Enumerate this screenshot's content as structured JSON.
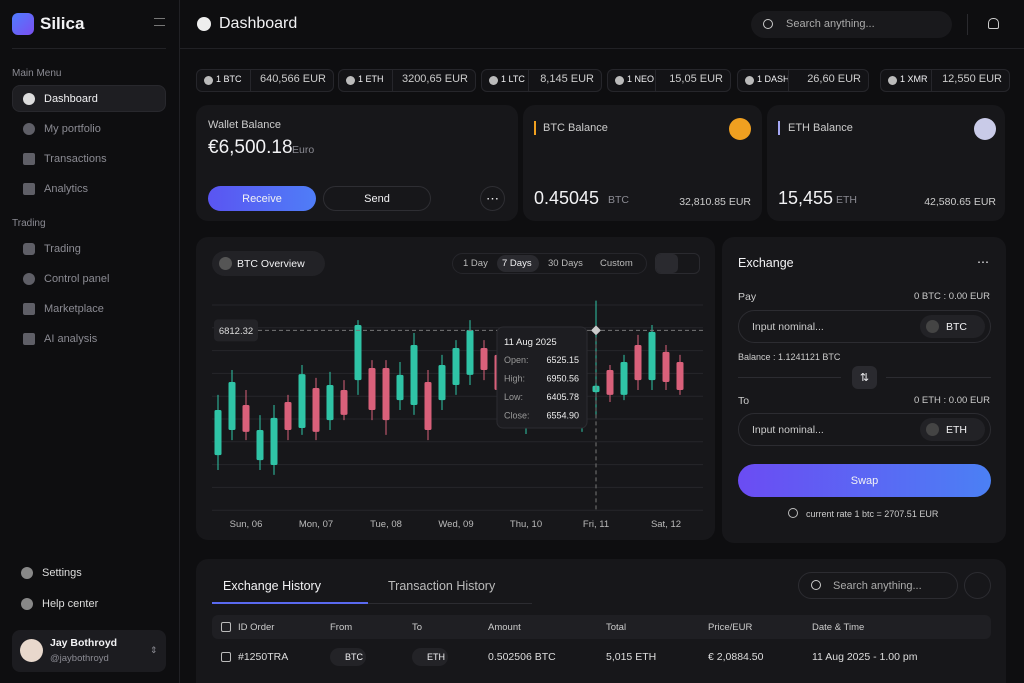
{
  "sidebar": {
    "brand": "Silica",
    "sections": [
      {
        "title": "Main Menu",
        "items": [
          "Dashboard",
          "My portfolio",
          "Transactions",
          "Analytics"
        ]
      },
      {
        "title": "Trading",
        "items": [
          "Trading",
          "Control panel",
          "Marketplace",
          "AI analysis"
        ]
      }
    ],
    "footer_items": [
      "Settings",
      "Help center"
    ],
    "user": {
      "name": "Jay Bothroyd",
      "handle": "@jaybothroyd"
    }
  },
  "header": {
    "title": "Dashboard",
    "search_placeholder": "Search anything..."
  },
  "ticker": [
    {
      "asset": "1 BTC",
      "price": "640,566 EUR"
    },
    {
      "asset": "1 ETH",
      "price": "3200,65 EUR"
    },
    {
      "asset": "1 LTC",
      "price": "8,145 EUR"
    },
    {
      "asset": "1 NEO",
      "price": "15,05 EUR"
    },
    {
      "asset": "1 DASH",
      "price": "26,60 EUR"
    },
    {
      "asset": "1 XMR",
      "price": "12,550 EUR"
    }
  ],
  "wallet": {
    "label": "Wallet Balance",
    "amount": "€6,500.18",
    "currency": "Euro",
    "buttons": [
      "Receive",
      "Send"
    ]
  },
  "balances": [
    {
      "label": "BTC Balance",
      "amount": "0.45045",
      "unit": "BTC",
      "fiat": "32,810.85 EUR"
    },
    {
      "label": "ETH Balance",
      "amount": "15,455",
      "unit": "ETH",
      "fiat": "42,580.65 EUR"
    }
  ],
  "overview": {
    "selector": "BTC Overview",
    "ranges": [
      "1 Day",
      "7 Days",
      "30 Days",
      "Custom"
    ]
  },
  "chart_data": {
    "type": "candlestick",
    "ylim": [
      6000,
      7000
    ],
    "grid": true,
    "up_color": "#2fc4a6",
    "down_color": "#d9607a",
    "x_axis_labels": [
      "Sun, 06",
      "Mon, 07",
      "Tue, 08",
      "Wed, 09",
      "Thu, 10",
      "Fri, 11",
      "Sat, 12"
    ],
    "open": [
      6232,
      6349,
      6465,
      6209,
      6186,
      6479,
      6358,
      6544,
      6395,
      6535,
      6581,
      6637,
      6637,
      6488,
      6465,
      6572,
      6488,
      6558,
      6605,
      6730,
      6698,
      6540,
      6420,
      6560,
      6470,
      6580,
      6430,
      6525.15,
      6628,
      6512,
      6744,
      6581,
      6712,
      6665
    ],
    "high": [
      6512,
      6628,
      6535,
      6418,
      6465,
      6512,
      6651,
      6591,
      6619,
      6581,
      6860,
      6674,
      6674,
      6665,
      6800,
      6628,
      6698,
      6767,
      6860,
      6767,
      6744,
      6650,
      6600,
      6600,
      6620,
      6620,
      6560,
      6950.56,
      6651,
      6698,
      6791,
      6837,
      6744,
      6698
    ],
    "low": [
      6163,
      6302,
      6302,
      6163,
      6140,
      6302,
      6326,
      6302,
      6349,
      6395,
      6512,
      6395,
      6326,
      6442,
      6419,
      6302,
      6442,
      6512,
      6558,
      6581,
      6488,
      6500,
      6330,
      6440,
      6430,
      6460,
      6340,
      6405.78,
      6479,
      6488,
      6535,
      6535,
      6535,
      6512
    ],
    "close": [
      6442,
      6572,
      6340,
      6349,
      6405,
      6349,
      6609,
      6340,
      6558,
      6419,
      6837,
      6442,
      6395,
      6605,
      6744,
      6349,
      6651,
      6730,
      6814,
      6628,
      6535,
      6600,
      6560,
      6480,
      6580,
      6500,
      6520,
      6554.9,
      6512,
      6665,
      6581,
      6805,
      6572,
      6535
    ],
    "crosshair": 6812.32,
    "tooltip": {
      "date": "11 Aug 2025",
      "rows": [
        {
          "label": "Open:",
          "value": "6525.15"
        },
        {
          "label": "High:",
          "value": "6950.56"
        },
        {
          "label": "Low:",
          "value": "6405.78"
        },
        {
          "label": "Close:",
          "value": "6554.90"
        }
      ]
    }
  },
  "exchange": {
    "title": "Exchange",
    "pay_label": "Pay",
    "pay_balance": "0 BTC : 0.00 EUR",
    "placeholder": "Input nominal...",
    "pay_coin": "BTC",
    "balance_note": "Balance : 1.1241121 BTC",
    "to_label": "To",
    "to_balance": "0 ETH : 0.00 EUR",
    "to_coin": "ETH",
    "button": "Swap",
    "rate": "current rate 1 btc = 2707.51 EUR"
  },
  "history": {
    "tabs": [
      "Exchange History",
      "Transaction History"
    ],
    "search_placeholder": "Search anything...",
    "columns": [
      "ID Order",
      "From",
      "To",
      "Amount",
      "Total",
      "Price/EUR",
      "Date & Time"
    ],
    "rows": [
      [
        "#1250TRA",
        "BTC",
        "ETH",
        "0.502506 BTC",
        "5,015 ETH",
        "€ 2,0884.50",
        "11 Aug 2025 - 1.00 pm"
      ]
    ]
  }
}
